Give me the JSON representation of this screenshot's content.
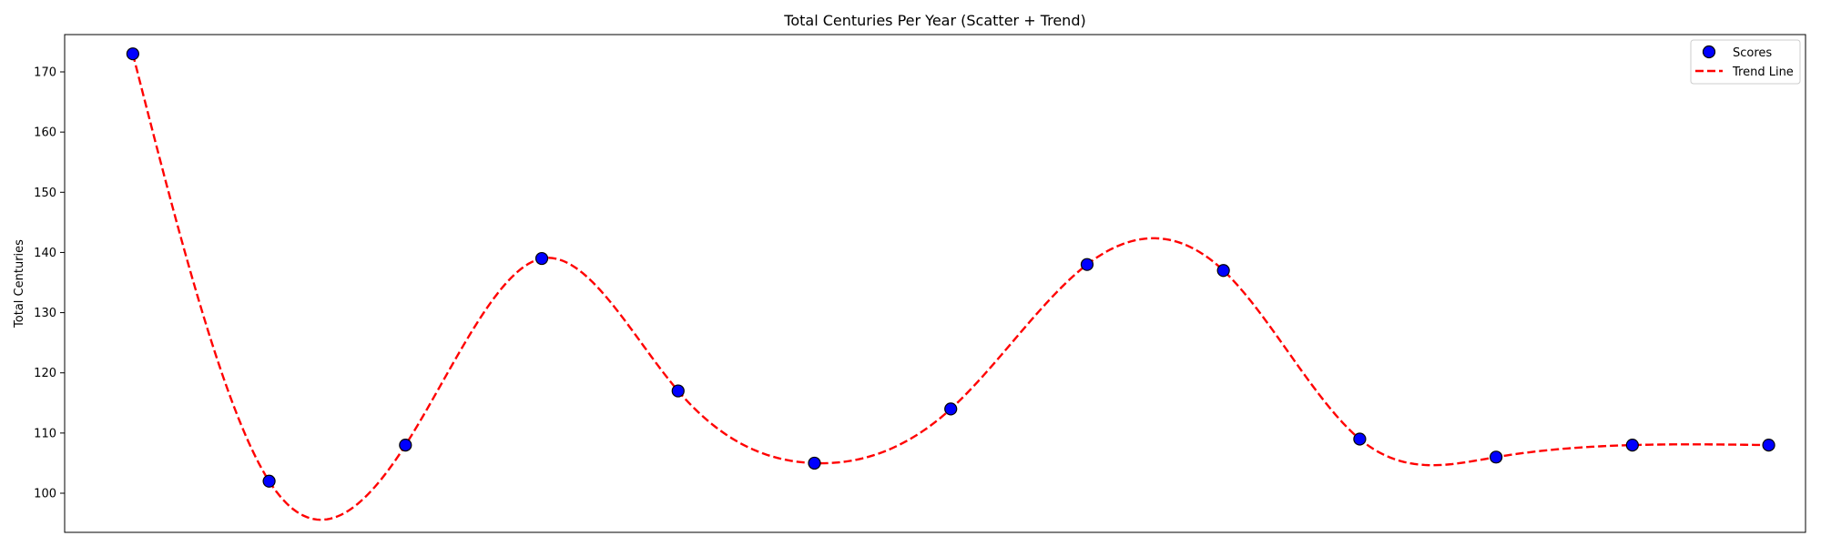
{
  "chart_data": {
    "type": "scatter",
    "title": "Total Centuries Per Year (Scatter + Trend)",
    "xlabel": "",
    "ylabel": "Total Centuries",
    "x_tick_labels_visible": false,
    "x": [
      0,
      1,
      2,
      3,
      4,
      5,
      6,
      7,
      8,
      9,
      10,
      11,
      12
    ],
    "xlim": [
      -0.5,
      12.27
    ],
    "ylim": [
      93.5,
      176.2
    ],
    "yticks": [
      100,
      110,
      120,
      130,
      140,
      150,
      160,
      170
    ],
    "grid": false,
    "legend_position": "top-right",
    "series": [
      {
        "name": "Scores",
        "kind": "scatter",
        "values": [
          173,
          102,
          108,
          139,
          117,
          105,
          114,
          138,
          137,
          109,
          106,
          108,
          108
        ],
        "color": "#0000ff",
        "edge_color": "#000000"
      },
      {
        "name": "Trend Line",
        "kind": "smooth-line",
        "style": "dashed",
        "values": [
          173,
          102,
          108,
          139,
          117,
          105,
          114,
          138,
          137,
          109,
          106,
          108,
          108
        ],
        "color": "#ff0000"
      }
    ]
  }
}
